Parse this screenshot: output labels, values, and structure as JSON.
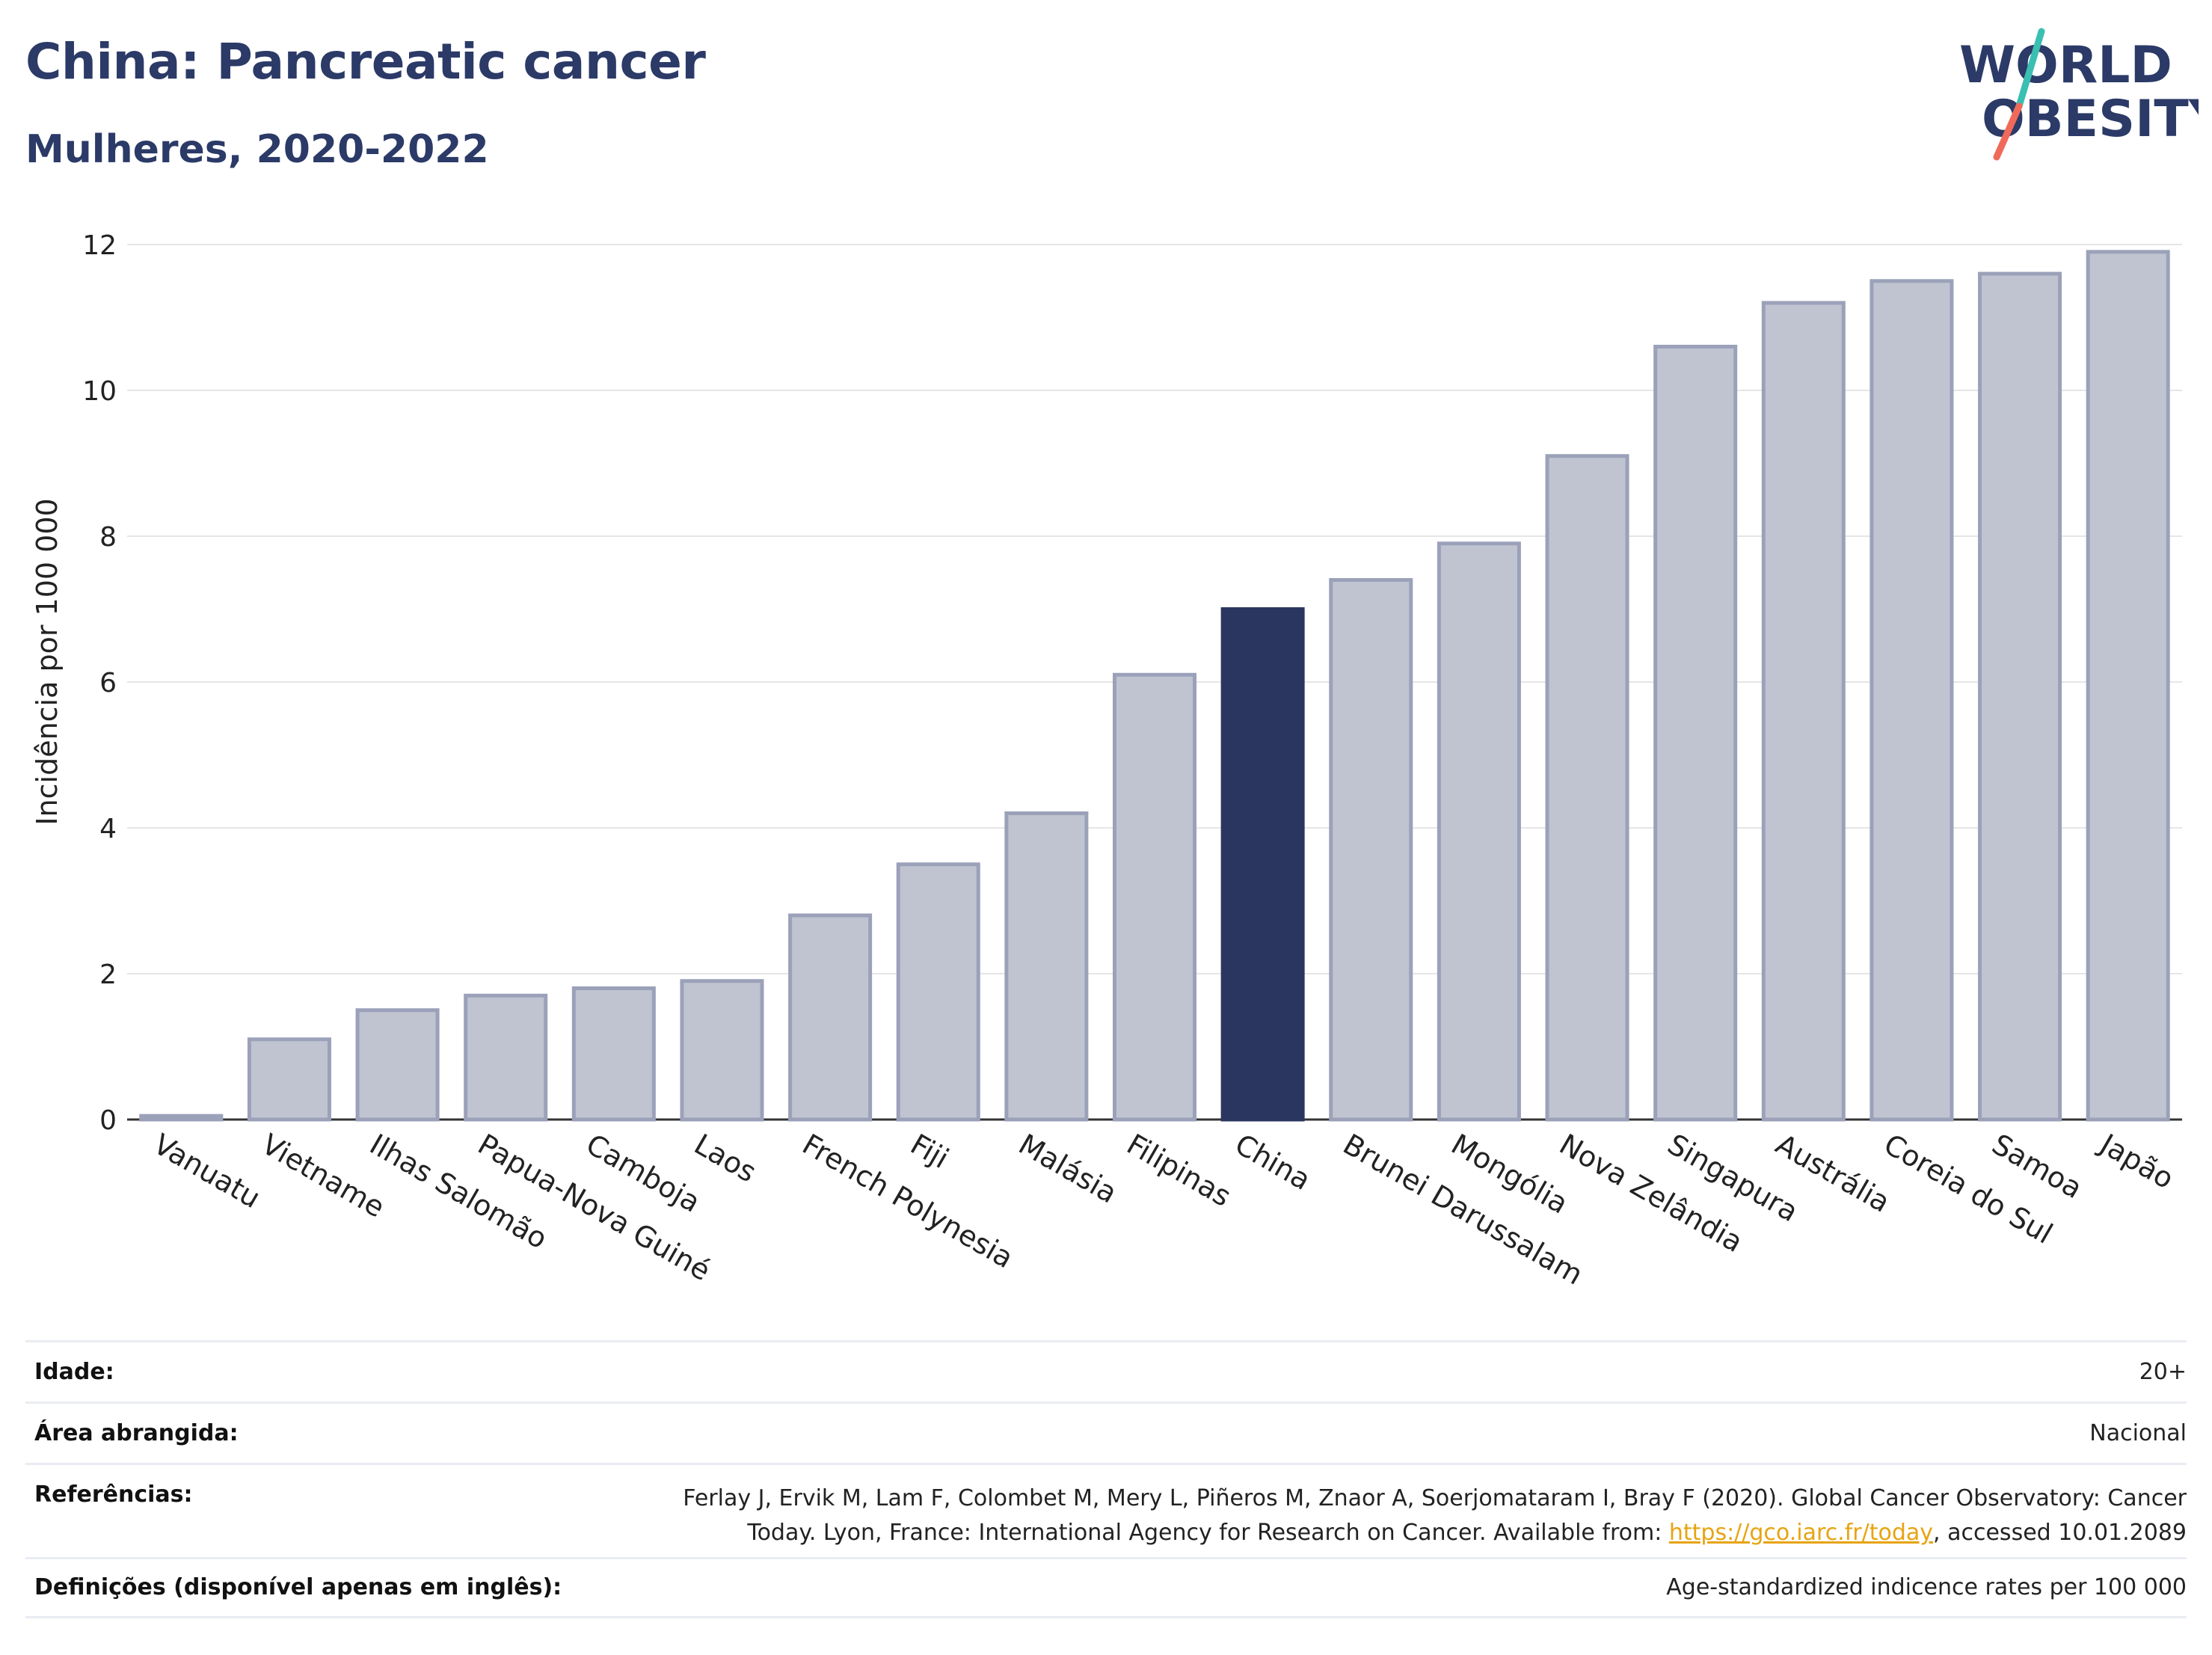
{
  "header": {
    "title": "China: Pancreatic cancer",
    "subtitle": "Mulheres, 2020-2022"
  },
  "logo": {
    "line1": "WORLD",
    "line2": "OBESITY",
    "colors": {
      "text": "#2b3a67",
      "slash_top": "#3bbfb2",
      "slash_bottom": "#ef6a5a"
    }
  },
  "chart_data": {
    "type": "bar",
    "title": "China: Pancreatic cancer",
    "subtitle": "Mulheres, 2020-2022",
    "xlabel": "",
    "ylabel": "Incidência por 100 000",
    "ylim": [
      0,
      12.3
    ],
    "yticks": [
      0,
      2,
      4,
      6,
      8,
      10,
      12
    ],
    "grid": true,
    "highlight": "China",
    "colors": {
      "bar": "#c0c4d1",
      "bar_edge": "#9ba1b9",
      "highlight": "#2b3660",
      "grid": "#e6e6e6"
    },
    "categories": [
      "Vanuatu",
      "Vietname",
      "Ilhas Salomão",
      "Papua-Nova Guiné",
      "Camboja",
      "Laos",
      "French Polynesia",
      "Fiji",
      "Malásia",
      "Filipinas",
      "China",
      "Brunei Darussalam",
      "Mongólia",
      "Nova Zelândia",
      "Singapura",
      "Austrália",
      "Coreia do Sul",
      "Samoa",
      "Japão"
    ],
    "values": [
      0.05,
      1.1,
      1.5,
      1.7,
      1.8,
      1.9,
      2.8,
      3.5,
      4.2,
      6.1,
      7.0,
      7.4,
      7.9,
      9.1,
      10.6,
      11.2,
      11.5,
      11.6,
      11.9
    ]
  },
  "info": {
    "age_label": "Idade:",
    "age_value": "20+",
    "area_label": "Área abrangida:",
    "area_value": "Nacional",
    "refs_label": "Referências:",
    "refs_line1": "Ferlay J, Ervik M, Lam F, Colombet M, Mery L, Piñeros M, Znaor A, Soerjomataram I, Bray F (2020). Global Cancer Observatory: Cancer",
    "refs_line2_a": "Today. Lyon, France: International Agency for Research on Cancer. Available from: ",
    "refs_link": "https://gco.iarc.fr/today",
    "refs_line2_b": ", accessed 10.01.2089",
    "defs_label": "Definições (disponível apenas em inglês):",
    "defs_value": "Age-standardized indicence rates per 100 000"
  }
}
